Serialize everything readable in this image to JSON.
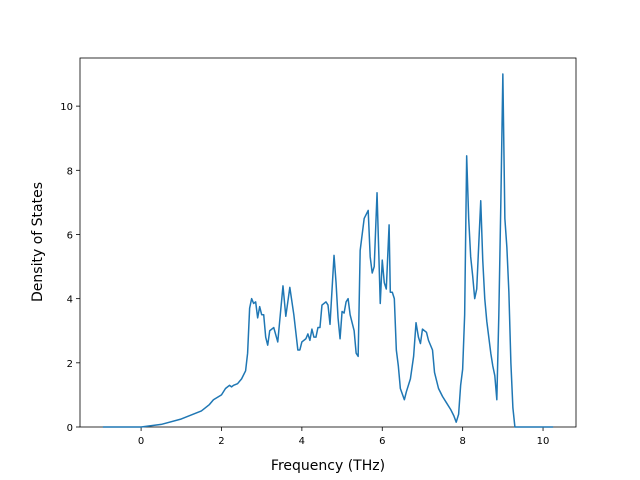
{
  "chart_data": {
    "type": "line",
    "xlabel": "Frequency (THz)",
    "ylabel": "Density of States",
    "xlim": [
      -1.52,
      10.82
    ],
    "ylim": [
      0,
      11.5
    ],
    "xticks": [
      0,
      2,
      4,
      6,
      8,
      10
    ],
    "yticks": [
      0,
      2,
      4,
      6,
      8,
      10
    ],
    "series": [
      {
        "color": "#1f77b4",
        "x": [
          -0.95,
          0,
          0.5,
          1.0,
          1.5,
          1.7,
          1.8,
          2.0,
          2.1,
          2.2,
          2.25,
          2.3,
          2.4,
          2.5,
          2.6,
          2.65,
          2.7,
          2.75,
          2.8,
          2.85,
          2.9,
          2.95,
          3.0,
          3.05,
          3.1,
          3.15,
          3.2,
          3.3,
          3.4,
          3.53,
          3.6,
          3.7,
          3.8,
          3.85,
          3.9,
          3.95,
          4.0,
          4.1,
          4.15,
          4.2,
          4.25,
          4.3,
          4.35,
          4.4,
          4.45,
          4.5,
          4.6,
          4.65,
          4.7,
          4.8,
          4.85,
          4.9,
          4.95,
          5.0,
          5.05,
          5.1,
          5.15,
          5.2,
          5.3,
          5.35,
          5.4,
          5.45,
          5.55,
          5.65,
          5.7,
          5.75,
          5.8,
          5.87,
          5.95,
          6.0,
          6.05,
          6.1,
          6.17,
          6.2,
          6.25,
          6.3,
          6.35,
          6.4,
          6.45,
          6.55,
          6.6,
          6.7,
          6.78,
          6.84,
          6.9,
          6.95,
          7.0,
          7.1,
          7.15,
          7.25,
          7.3,
          7.4,
          7.5,
          7.6,
          7.7,
          7.78,
          7.84,
          7.9,
          7.95,
          8.0,
          8.05,
          8.1,
          8.15,
          8.2,
          8.25,
          8.3,
          8.35,
          8.45,
          8.5,
          8.55,
          8.6,
          8.7,
          8.75,
          8.8,
          8.85,
          8.9,
          8.95,
          9.0,
          9.05,
          9.1,
          9.15,
          9.2,
          9.25,
          9.3,
          9.6,
          10.25
        ],
        "values": [
          0,
          0,
          0.08,
          0.25,
          0.5,
          0.7,
          0.85,
          1.0,
          1.2,
          1.3,
          1.25,
          1.3,
          1.35,
          1.5,
          1.75,
          2.3,
          3.7,
          4.0,
          3.85,
          3.9,
          3.4,
          3.75,
          3.5,
          3.5,
          2.8,
          2.55,
          3.0,
          3.1,
          2.65,
          4.4,
          3.45,
          4.35,
          3.5,
          2.95,
          2.4,
          2.4,
          2.65,
          2.75,
          2.9,
          2.7,
          3.05,
          2.8,
          2.8,
          3.1,
          3.1,
          3.8,
          3.9,
          3.8,
          3.2,
          5.35,
          4.5,
          3.4,
          2.75,
          3.6,
          3.55,
          3.9,
          4.0,
          3.5,
          3.0,
          2.3,
          2.2,
          5.5,
          6.5,
          6.75,
          5.3,
          4.8,
          5.0,
          7.3,
          3.85,
          5.2,
          4.5,
          4.3,
          6.3,
          4.2,
          4.2,
          4.0,
          2.4,
          1.9,
          1.2,
          0.85,
          1.1,
          1.5,
          2.2,
          3.25,
          2.8,
          2.6,
          3.05,
          2.95,
          2.7,
          2.4,
          1.7,
          1.2,
          0.95,
          0.75,
          0.55,
          0.35,
          0.15,
          0.4,
          1.3,
          1.8,
          3.5,
          8.45,
          6.5,
          5.3,
          4.7,
          4.0,
          4.3,
          7.05,
          5.2,
          4.0,
          3.3,
          2.3,
          1.9,
          1.6,
          0.85,
          3.5,
          7.0,
          11.0,
          6.5,
          5.6,
          4.2,
          2.0,
          0.6,
          0,
          0,
          0
        ]
      }
    ]
  }
}
